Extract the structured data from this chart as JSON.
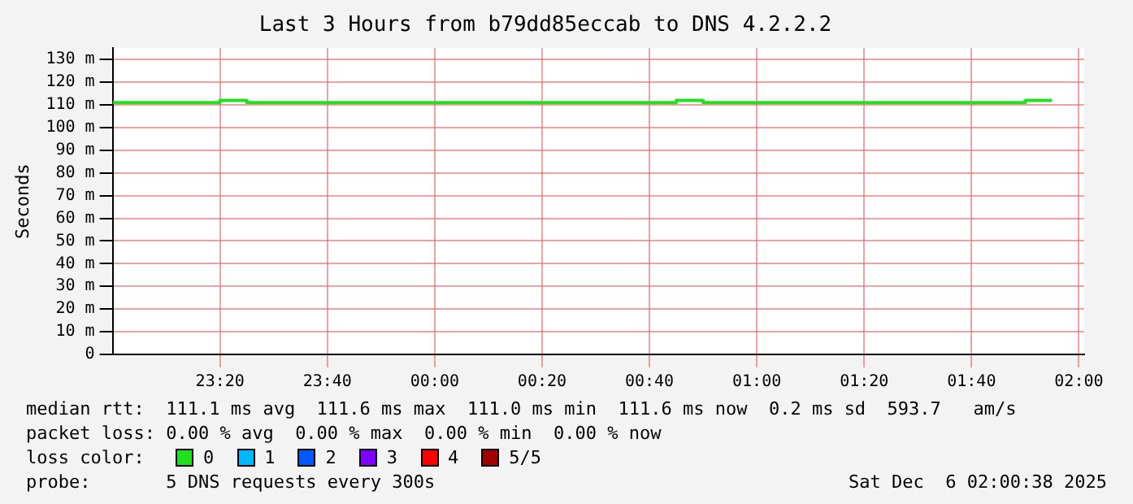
{
  "chart_data": {
    "type": "step",
    "title": "Last 3 Hours from b79dd85eccab to DNS 4.2.2.2",
    "ylabel": "Seconds",
    "x": [
      "2025-12-05T23:00",
      "2025-12-05T23:05",
      "2025-12-05T23:10",
      "2025-12-05T23:15",
      "2025-12-05T23:20",
      "2025-12-05T23:25",
      "2025-12-05T23:30",
      "2025-12-05T23:35",
      "2025-12-05T23:40",
      "2025-12-05T23:45",
      "2025-12-05T23:50",
      "2025-12-05T23:55",
      "2025-12-06T00:00",
      "2025-12-06T00:05",
      "2025-12-06T00:10",
      "2025-12-06T00:15",
      "2025-12-06T00:20",
      "2025-12-06T00:25",
      "2025-12-06T00:30",
      "2025-12-06T00:35",
      "2025-12-06T00:40",
      "2025-12-06T00:45",
      "2025-12-06T00:50",
      "2025-12-06T00:55",
      "2025-12-06T01:00",
      "2025-12-06T01:05",
      "2025-12-06T01:10",
      "2025-12-06T01:15",
      "2025-12-06T01:20",
      "2025-12-06T01:25",
      "2025-12-06T01:30",
      "2025-12-06T01:35",
      "2025-12-06T01:40",
      "2025-12-06T01:45",
      "2025-12-06T01:50",
      "2025-12-06T01:55"
    ],
    "xlim": [
      "2025-12-05T23:00",
      "2025-12-06T02:01"
    ],
    "xticks": [
      {
        "value": "2025-12-05T23:20",
        "label": "23:20"
      },
      {
        "value": "2025-12-05T23:40",
        "label": "23:40"
      },
      {
        "value": "2025-12-06T00:00",
        "label": "00:00"
      },
      {
        "value": "2025-12-06T00:20",
        "label": "00:20"
      },
      {
        "value": "2025-12-06T00:40",
        "label": "00:40"
      },
      {
        "value": "2025-12-06T01:00",
        "label": "01:00"
      },
      {
        "value": "2025-12-06T01:20",
        "label": "01:20"
      },
      {
        "value": "2025-12-06T01:40",
        "label": "01:40"
      },
      {
        "value": "2025-12-06T02:00",
        "label": "02:00"
      }
    ],
    "ylim": [
      0,
      135
    ],
    "yticks": [
      0,
      {
        "value": 10,
        "label": "10 m"
      },
      {
        "value": 20,
        "label": "20 m"
      },
      {
        "value": 30,
        "label": "30 m"
      },
      {
        "value": 40,
        "label": "40 m"
      },
      {
        "value": 50,
        "label": "50 m"
      },
      {
        "value": 60,
        "label": "60 m"
      },
      {
        "value": 70,
        "label": "70 m"
      },
      {
        "value": 80,
        "label": "80 m"
      },
      {
        "value": 90,
        "label": "90 m"
      },
      {
        "value": 100,
        "label": "100 m"
      },
      {
        "value": 110,
        "label": "110 m"
      },
      {
        "value": 120,
        "label": "120 m"
      },
      {
        "value": 130,
        "label": "130 m"
      }
    ],
    "grid": true,
    "legend": "bottom",
    "legend_title": "loss color:",
    "marker": "none",
    "line_style": "solid",
    "series": [
      {
        "name": "0",
        "color": "#20e020",
        "values": [
          111,
          111,
          111,
          111,
          112,
          111,
          111,
          111,
          111,
          111,
          111,
          111,
          111,
          111,
          111,
          111,
          111,
          111,
          111,
          111,
          111,
          112,
          111,
          111,
          111,
          111,
          111,
          111,
          111,
          111,
          111,
          111,
          111,
          111,
          112,
          112
        ]
      },
      {
        "name": "1",
        "color": "#00b8ff",
        "values": [
          null,
          null,
          null,
          null,
          null,
          null,
          null,
          null,
          null,
          null,
          null,
          null,
          null,
          null,
          null,
          null,
          null,
          null,
          null,
          null,
          null,
          null,
          null,
          null,
          null,
          null,
          null,
          null,
          null,
          null,
          null,
          null,
          null,
          null,
          null,
          null
        ]
      },
      {
        "name": "2",
        "color": "#0059ff",
        "values": [
          null,
          null,
          null,
          null,
          null,
          null,
          null,
          null,
          null,
          null,
          null,
          null,
          null,
          null,
          null,
          null,
          null,
          null,
          null,
          null,
          null,
          null,
          null,
          null,
          null,
          null,
          null,
          null,
          null,
          null,
          null,
          null,
          null,
          null,
          null,
          null
        ]
      },
      {
        "name": "3",
        "color": "#7e00ff",
        "values": [
          null,
          null,
          null,
          null,
          null,
          null,
          null,
          null,
          null,
          null,
          null,
          null,
          null,
          null,
          null,
          null,
          null,
          null,
          null,
          null,
          null,
          null,
          null,
          null,
          null,
          null,
          null,
          null,
          null,
          null,
          null,
          null,
          null,
          null,
          null,
          null
        ]
      },
      {
        "name": "4",
        "color": "#ff0000",
        "values": [
          null,
          null,
          null,
          null,
          null,
          null,
          null,
          null,
          null,
          null,
          null,
          null,
          null,
          null,
          null,
          null,
          null,
          null,
          null,
          null,
          null,
          null,
          null,
          null,
          null,
          null,
          null,
          null,
          null,
          null,
          null,
          null,
          null,
          null,
          null,
          null
        ]
      },
      {
        "name": "5/5",
        "color": "#a10000",
        "values": [
          null,
          null,
          null,
          null,
          null,
          null,
          null,
          null,
          null,
          null,
          null,
          null,
          null,
          null,
          null,
          null,
          null,
          null,
          null,
          null,
          null,
          null,
          null,
          null,
          null,
          null,
          null,
          null,
          null,
          null,
          null,
          null,
          null,
          null,
          null,
          null
        ]
      }
    ],
    "annotations": [
      "median rtt:  111.1 ms avg  111.6 ms max  111.0 ms min  111.6 ms now  0.2 ms sd  593.7   am/s",
      "packet loss: 0.00 % avg  0.00 % max  0.00 % min  0.00 % now",
      "probe:       5 DNS requests every 300s",
      "Sat Dec  6 02:00:38 2025"
    ]
  }
}
